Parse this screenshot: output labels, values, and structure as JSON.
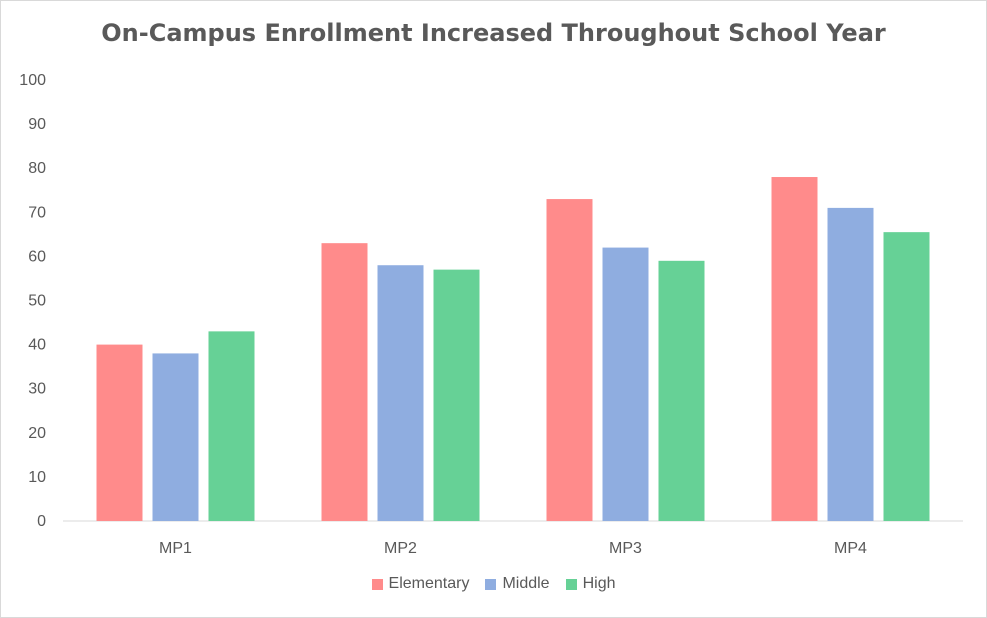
{
  "chart_data": {
    "type": "bar",
    "title": "On-Campus Enrollment Increased Throughout School Year",
    "categories": [
      "MP1",
      "MP2",
      "MP3",
      "MP4"
    ],
    "series": [
      {
        "name": "Elementary",
        "color": "#FF8B8B",
        "values": [
          40,
          63,
          73,
          78
        ]
      },
      {
        "name": "Middle",
        "color": "#8FADE0",
        "values": [
          38,
          58,
          62,
          71
        ]
      },
      {
        "name": "High",
        "color": "#66D196",
        "values": [
          43,
          57,
          59,
          65.5
        ]
      }
    ],
    "ylim": [
      0,
      100
    ],
    "yticks": [
      "0",
      "10",
      "20",
      "30",
      "40",
      "50",
      "60",
      "70",
      "80",
      "90",
      "100"
    ],
    "grid": false,
    "legend_position": "bottom"
  }
}
